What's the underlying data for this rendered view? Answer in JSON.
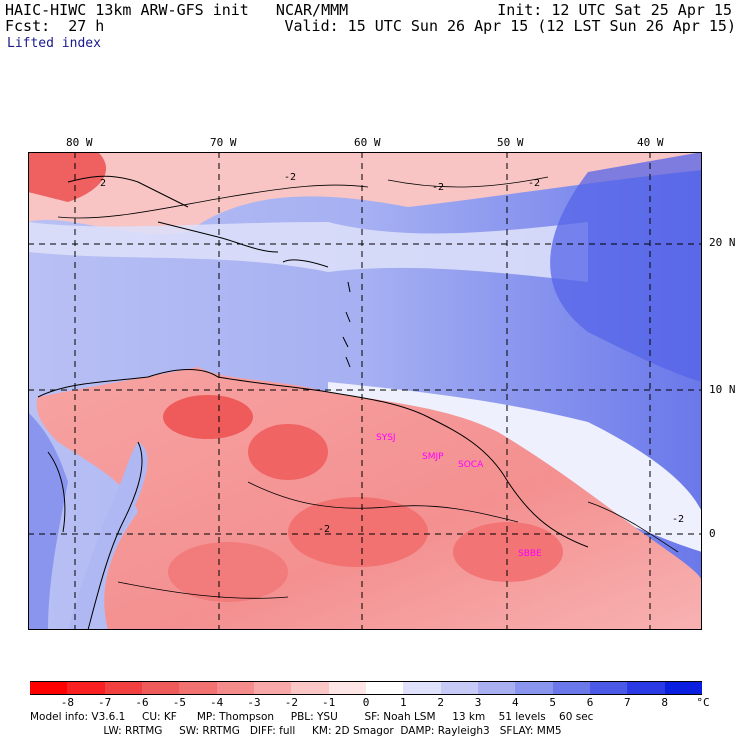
{
  "header": {
    "line1_left": "HAIC-HIWC 13km ARW-GFS init   NCAR/MMM",
    "line2_left": "Fcst:  27 h",
    "line1_right": "Init: 12 UTC Sat 25 Apr 15",
    "line2_right": "Valid: 15 UTC Sun 26 Apr 15 (12 LST Sun 26 Apr 15)",
    "field_name": "Lifted index"
  },
  "map": {
    "lon_labels": [
      "80 W",
      "70 W",
      "60 W",
      "50 W",
      "40 W"
    ],
    "lat_labels": [
      "20 N",
      "10 N",
      "0"
    ],
    "contour_labels": [
      "2",
      "-2",
      "-2",
      "-2",
      "-2",
      "-2"
    ],
    "stations": [
      "SYSJ",
      "SMJP",
      "SOCA",
      "SBBE"
    ],
    "colors": {
      "negative": "#f26a6a",
      "positive": "#7a8cf0",
      "neutral": "#ffffff",
      "station": "#ff00ff"
    }
  },
  "colorbar": {
    "labels": [
      "-8",
      "-7",
      "-6",
      "-5",
      "-4",
      "-3",
      "-2",
      "-1",
      "0",
      "1",
      "2",
      "3",
      "4",
      "5",
      "6",
      "7",
      "8"
    ],
    "unit": "°C",
    "colors": [
      "#ff0000",
      "#f82020",
      "#f24040",
      "#ef5a5a",
      "#f27272",
      "#f58c8c",
      "#f8a8a8",
      "#fbc6c6",
      "#ffe6e6",
      "#ffffff",
      "#e0e2fb",
      "#c6caf6",
      "#a8b0f2",
      "#8a96ee",
      "#6a78ea",
      "#4a5ae6",
      "#2a3ae4",
      "#0a1ee0"
    ]
  },
  "footer": {
    "line1": "Model info: V3.6.1     CU: KF      MP: Thompson     PBL: YSU        SF: Noah LSM     13 km    51 levels    60 sec",
    "line2": "                      LW: RRTMG     SW: RRTMG   DIFF: full     KM: 2D Smagor  DAMP: Rayleigh3   SFLAY: MM5"
  }
}
